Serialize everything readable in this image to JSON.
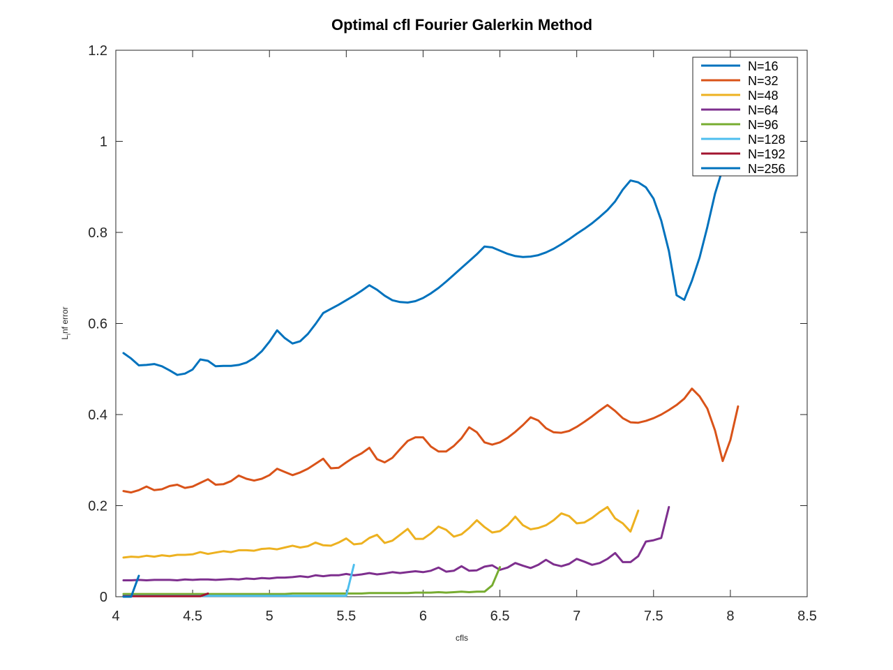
{
  "chart_data": {
    "type": "line",
    "title": "Optimal cfl Fourier Galerkin Method",
    "xlabel": "cfls",
    "ylabel": "L_inf error",
    "ylabel_main": "L",
    "ylabel_sub": "i",
    "ylabel_rest": "nf error",
    "xlim": [
      4,
      8.5
    ],
    "ylim": [
      0,
      1.2
    ],
    "xticks": [
      4,
      4.5,
      5,
      5.5,
      6,
      6.5,
      7,
      7.5,
      8,
      8.5
    ],
    "xtick_labels": [
      "4",
      "4.5",
      "5",
      "5.5",
      "6",
      "6.5",
      "7",
      "7.5",
      "8",
      "8.5"
    ],
    "yticks": [
      0,
      0.2,
      0.4,
      0.6,
      0.8,
      1,
      1.2
    ],
    "ytick_labels": [
      "0",
      "0.2",
      "0.4",
      "0.6",
      "0.8",
      "1",
      "1.2"
    ],
    "grid": false,
    "legend_position": "top-right",
    "series": [
      {
        "name": "N=16",
        "color": "#0072BD",
        "x": [
          4.05,
          4.1,
          4.15,
          4.2,
          4.25,
          4.3,
          4.35,
          4.4,
          4.45,
          4.5,
          4.55,
          4.6,
          4.65,
          4.7,
          4.75,
          4.8,
          4.85,
          4.9,
          4.95,
          5.0,
          5.05,
          5.1,
          5.15,
          5.2,
          5.25,
          5.3,
          5.35,
          5.4,
          5.45,
          5.5,
          5.55,
          5.6,
          5.65,
          5.7,
          5.75,
          5.8,
          5.85,
          5.9,
          5.95,
          6.0,
          6.05,
          6.1,
          6.15,
          6.2,
          6.25,
          6.3,
          6.35,
          6.4,
          6.45,
          6.5,
          6.55,
          6.6,
          6.65,
          6.7,
          6.75,
          6.8,
          6.85,
          6.9,
          6.95,
          7.0,
          7.05,
          7.1,
          7.15,
          7.2,
          7.25,
          7.3,
          7.35,
          7.4,
          7.45,
          7.5,
          7.55,
          7.6,
          7.65,
          7.7,
          7.75,
          7.8,
          7.85,
          7.9,
          7.95
        ],
        "y": [
          0.535,
          0.523,
          0.508,
          0.509,
          0.511,
          0.506,
          0.497,
          0.487,
          0.49,
          0.499,
          0.521,
          0.518,
          0.506,
          0.507,
          0.507,
          0.509,
          0.514,
          0.524,
          0.539,
          0.56,
          0.585,
          0.568,
          0.556,
          0.561,
          0.577,
          0.599,
          0.623,
          0.632,
          0.641,
          0.651,
          0.661,
          0.672,
          0.684,
          0.674,
          0.661,
          0.651,
          0.647,
          0.646,
          0.649,
          0.656,
          0.666,
          0.678,
          0.692,
          0.707,
          0.722,
          0.737,
          0.752,
          0.769,
          0.767,
          0.76,
          0.753,
          0.748,
          0.746,
          0.747,
          0.75,
          0.756,
          0.764,
          0.774,
          0.785,
          0.797,
          0.808,
          0.82,
          0.834,
          0.849,
          0.868,
          0.894,
          0.914,
          0.91,
          0.899,
          0.874,
          0.826,
          0.759,
          0.662,
          0.652,
          0.694,
          0.745,
          0.812,
          0.885,
          0.94
        ]
      },
      {
        "name": "N=32",
        "color": "#D95319",
        "x": [
          4.05,
          4.1,
          4.15,
          4.2,
          4.25,
          4.3,
          4.35,
          4.4,
          4.45,
          4.5,
          4.55,
          4.6,
          4.65,
          4.7,
          4.75,
          4.8,
          4.85,
          4.9,
          4.95,
          5.0,
          5.05,
          5.1,
          5.15,
          5.2,
          5.25,
          5.3,
          5.35,
          5.4,
          5.45,
          5.5,
          5.55,
          5.6,
          5.65,
          5.7,
          5.75,
          5.8,
          5.85,
          5.9,
          5.95,
          6.0,
          6.05,
          6.1,
          6.15,
          6.2,
          6.25,
          6.3,
          6.35,
          6.4,
          6.45,
          6.5,
          6.55,
          6.6,
          6.65,
          6.7,
          6.75,
          6.8,
          6.85,
          6.9,
          6.95,
          7.0,
          7.05,
          7.1,
          7.15,
          7.2,
          7.25,
          7.3,
          7.35,
          7.4,
          7.45,
          7.5,
          7.55,
          7.6,
          7.65,
          7.7,
          7.75,
          7.8,
          7.85,
          7.9,
          7.95,
          8.0,
          8.05
        ],
        "y": [
          0.232,
          0.229,
          0.234,
          0.242,
          0.234,
          0.236,
          0.243,
          0.246,
          0.239,
          0.242,
          0.25,
          0.258,
          0.246,
          0.247,
          0.254,
          0.266,
          0.259,
          0.255,
          0.259,
          0.267,
          0.281,
          0.274,
          0.267,
          0.273,
          0.281,
          0.292,
          0.303,
          0.282,
          0.283,
          0.295,
          0.306,
          0.315,
          0.327,
          0.302,
          0.295,
          0.305,
          0.324,
          0.342,
          0.35,
          0.35,
          0.33,
          0.319,
          0.319,
          0.331,
          0.348,
          0.372,
          0.361,
          0.339,
          0.334,
          0.339,
          0.349,
          0.362,
          0.377,
          0.394,
          0.387,
          0.37,
          0.361,
          0.36,
          0.364,
          0.373,
          0.384,
          0.396,
          0.409,
          0.421,
          0.408,
          0.392,
          0.383,
          0.382,
          0.386,
          0.392,
          0.4,
          0.41,
          0.421,
          0.435,
          0.457,
          0.44,
          0.413,
          0.365,
          0.298,
          0.344,
          0.418
        ]
      },
      {
        "name": "N=48",
        "color": "#EDB120",
        "x": [
          4.05,
          4.1,
          4.15,
          4.2,
          4.25,
          4.3,
          4.35,
          4.4,
          4.45,
          4.5,
          4.55,
          4.6,
          4.65,
          4.7,
          4.75,
          4.8,
          4.85,
          4.9,
          4.95,
          5.0,
          5.05,
          5.1,
          5.15,
          5.2,
          5.25,
          5.3,
          5.35,
          5.4,
          5.45,
          5.5,
          5.55,
          5.6,
          5.65,
          5.7,
          5.75,
          5.8,
          5.85,
          5.9,
          5.95,
          6.0,
          6.05,
          6.1,
          6.15,
          6.2,
          6.25,
          6.3,
          6.35,
          6.4,
          6.45,
          6.5,
          6.55,
          6.6,
          6.65,
          6.7,
          6.75,
          6.8,
          6.85,
          6.9,
          6.95,
          7.0,
          7.05,
          7.1,
          7.15,
          7.2,
          7.25,
          7.3,
          7.35,
          7.4
        ],
        "y": [
          0.086,
          0.088,
          0.087,
          0.09,
          0.088,
          0.091,
          0.089,
          0.092,
          0.092,
          0.093,
          0.098,
          0.094,
          0.097,
          0.1,
          0.098,
          0.102,
          0.102,
          0.101,
          0.105,
          0.106,
          0.104,
          0.108,
          0.112,
          0.108,
          0.111,
          0.119,
          0.113,
          0.112,
          0.119,
          0.128,
          0.115,
          0.117,
          0.129,
          0.136,
          0.118,
          0.123,
          0.136,
          0.149,
          0.127,
          0.127,
          0.139,
          0.154,
          0.147,
          0.132,
          0.137,
          0.151,
          0.168,
          0.153,
          0.141,
          0.144,
          0.157,
          0.176,
          0.157,
          0.148,
          0.151,
          0.157,
          0.168,
          0.183,
          0.177,
          0.161,
          0.163,
          0.173,
          0.186,
          0.197,
          0.172,
          0.161,
          0.143,
          0.189
        ]
      },
      {
        "name": "N=64",
        "color": "#7E2F8E",
        "x": [
          4.05,
          4.1,
          4.15,
          4.2,
          4.25,
          4.3,
          4.35,
          4.4,
          4.45,
          4.5,
          4.55,
          4.6,
          4.65,
          4.7,
          4.75,
          4.8,
          4.85,
          4.9,
          4.95,
          5.0,
          5.05,
          5.1,
          5.15,
          5.2,
          5.25,
          5.3,
          5.35,
          5.4,
          5.45,
          5.5,
          5.55,
          5.6,
          5.65,
          5.7,
          5.75,
          5.8,
          5.85,
          5.9,
          5.95,
          6.0,
          6.05,
          6.1,
          6.15,
          6.2,
          6.25,
          6.3,
          6.35,
          6.4,
          6.45,
          6.5,
          6.55,
          6.6,
          6.65,
          6.7,
          6.75,
          6.8,
          6.85,
          6.9,
          6.95,
          7.0,
          7.05,
          7.1,
          7.15,
          7.2,
          7.25,
          7.3,
          7.35,
          7.4,
          7.45,
          7.5,
          7.55,
          7.6
        ],
        "y": [
          0.036,
          0.036,
          0.037,
          0.036,
          0.037,
          0.037,
          0.037,
          0.036,
          0.038,
          0.037,
          0.038,
          0.038,
          0.037,
          0.038,
          0.039,
          0.038,
          0.04,
          0.039,
          0.041,
          0.04,
          0.042,
          0.042,
          0.043,
          0.045,
          0.043,
          0.047,
          0.045,
          0.047,
          0.047,
          0.05,
          0.047,
          0.049,
          0.052,
          0.049,
          0.051,
          0.054,
          0.052,
          0.054,
          0.056,
          0.054,
          0.057,
          0.064,
          0.055,
          0.057,
          0.067,
          0.057,
          0.058,
          0.066,
          0.069,
          0.059,
          0.064,
          0.074,
          0.068,
          0.063,
          0.07,
          0.081,
          0.071,
          0.067,
          0.072,
          0.083,
          0.077,
          0.07,
          0.074,
          0.083,
          0.096,
          0.076,
          0.076,
          0.089,
          0.121,
          0.124,
          0.129,
          0.197
        ]
      },
      {
        "name": "N=96",
        "color": "#77AC30",
        "x": [
          4.05,
          4.1,
          4.15,
          4.2,
          4.25,
          4.3,
          4.35,
          4.4,
          4.45,
          4.5,
          4.55,
          4.6,
          4.65,
          4.7,
          4.75,
          4.8,
          4.85,
          4.9,
          4.95,
          5.0,
          5.05,
          5.1,
          5.15,
          5.2,
          5.25,
          5.3,
          5.35,
          5.4,
          5.45,
          5.5,
          5.55,
          5.6,
          5.65,
          5.7,
          5.75,
          5.8,
          5.85,
          5.9,
          5.95,
          6.0,
          6.05,
          6.1,
          6.15,
          6.2,
          6.25,
          6.3,
          6.35,
          6.4,
          6.45,
          6.5
        ],
        "y": [
          0.006,
          0.006,
          0.006,
          0.006,
          0.006,
          0.006,
          0.006,
          0.006,
          0.006,
          0.006,
          0.006,
          0.006,
          0.006,
          0.006,
          0.006,
          0.006,
          0.006,
          0.006,
          0.006,
          0.006,
          0.006,
          0.006,
          0.007,
          0.007,
          0.007,
          0.007,
          0.007,
          0.007,
          0.007,
          0.007,
          0.007,
          0.007,
          0.008,
          0.008,
          0.008,
          0.008,
          0.008,
          0.008,
          0.009,
          0.009,
          0.009,
          0.01,
          0.009,
          0.01,
          0.011,
          0.01,
          0.011,
          0.011,
          0.025,
          0.065
        ]
      },
      {
        "name": "N=128",
        "color": "#4DBEEE",
        "x": [
          4.05,
          4.5,
          5.0,
          5.5,
          5.55
        ],
        "y": [
          0.002,
          0.002,
          0.002,
          0.002,
          0.07
        ]
      },
      {
        "name": "N=192",
        "color": "#A2142F",
        "x": [
          4.05,
          4.2,
          4.4,
          4.55,
          4.6
        ],
        "y": [
          0.001,
          0.001,
          0.001,
          0.001,
          0.007
        ]
      },
      {
        "name": "N=256",
        "color": "#0072BD",
        "x": [
          4.05,
          4.1,
          4.15
        ],
        "y": [
          0.0,
          0.0,
          0.046
        ]
      }
    ]
  }
}
